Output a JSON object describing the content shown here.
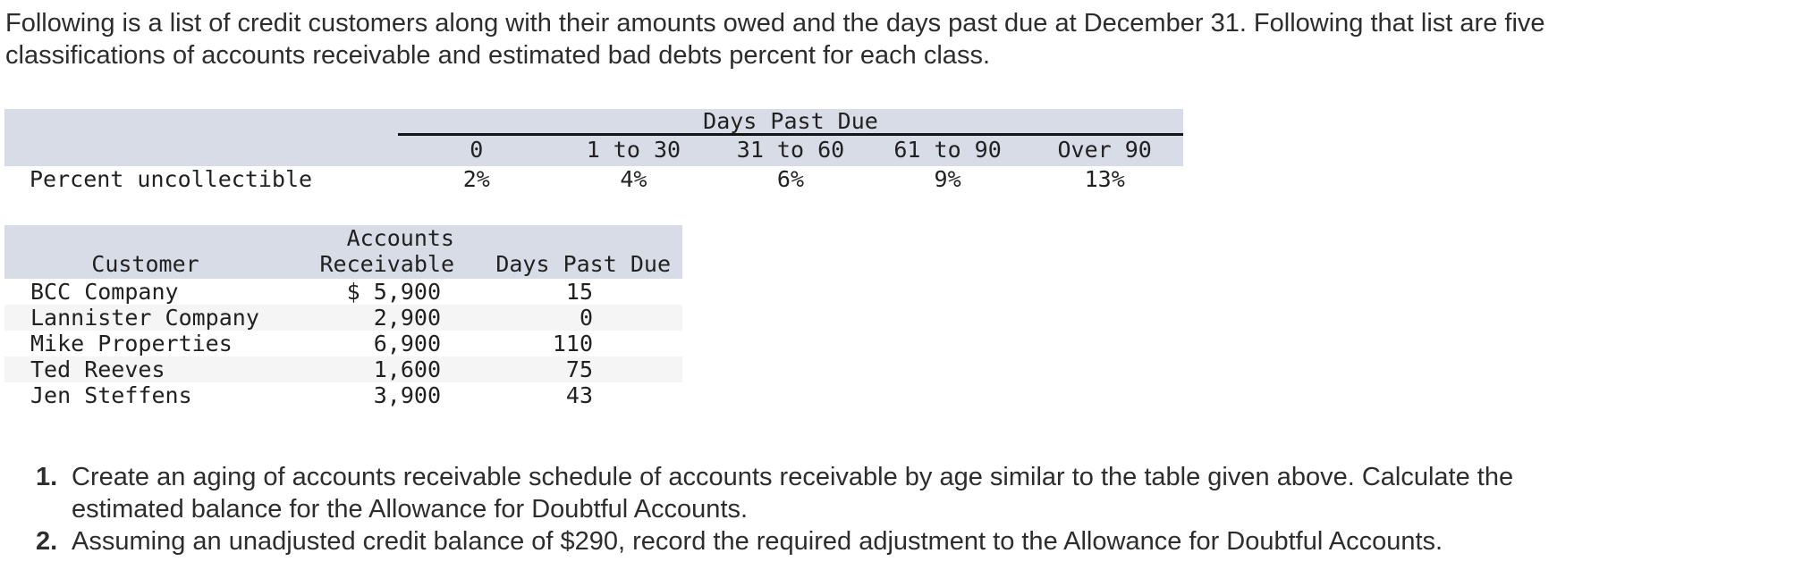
{
  "intro": {
    "lines": [
      "Following is a list of credit customers along with their amounts owed and the days past due at December 31. Following that list are five",
      "classifications of accounts receivable and estimated bad debts percent for each class."
    ]
  },
  "aging_table": {
    "group_header": "Days Past Due",
    "columns": [
      "0",
      "1 to 30",
      "31 to 60",
      "61 to 90",
      "Over 90"
    ],
    "row_label": "Percent uncollectible",
    "values": [
      "2%",
      "4%",
      "6%",
      "9%",
      "13%"
    ]
  },
  "customer_table": {
    "headers": {
      "customer": "Customer",
      "ar_line1": "Accounts",
      "ar_line2": "Receivable",
      "days": "Days Past Due"
    },
    "rows": [
      {
        "customer": "BCC Company",
        "ar": "$ 5,900",
        "days": "15"
      },
      {
        "customer": "Lannister Company",
        "ar": "2,900",
        "days": "0"
      },
      {
        "customer": "Mike Properties",
        "ar": "6,900",
        "days": "110"
      },
      {
        "customer": "Ted Reeves",
        "ar": "1,600",
        "days": "75"
      },
      {
        "customer": "Jen Steffens",
        "ar": "3,900",
        "days": "43"
      }
    ]
  },
  "instructions": {
    "items": [
      {
        "number": "1.",
        "lines": [
          "Create an aging of accounts receivable schedule of accounts receivable by age similar to the table given above. Calculate the",
          "estimated balance for the Allowance for Doubtful Accounts."
        ]
      },
      {
        "number": "2.",
        "lines": [
          "Assuming an unadjusted credit balance of $290, record the required adjustment to the Allowance for Doubtful Accounts."
        ]
      }
    ]
  },
  "colors": {
    "table_header_bg": "#d8dce6",
    "zebra_bg": "#f5f5f5",
    "rule": "#141414"
  }
}
